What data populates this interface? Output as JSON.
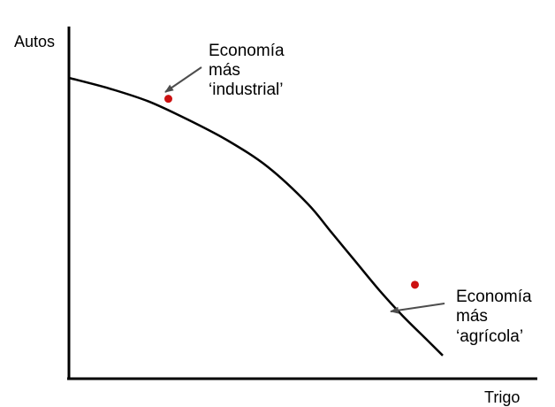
{
  "chart_data": {
    "type": "line",
    "title": "",
    "xlabel": "Trigo",
    "ylabel": "Autos",
    "xlim": [
      0,
      100
    ],
    "ylim": [
      0,
      100
    ],
    "grid": false,
    "ticks": false,
    "series": [
      {
        "x": [
          0,
          10,
          20,
          30,
          40,
          50,
          60,
          66,
          72,
          78,
          84,
          90,
          94
        ],
        "y": [
          100,
          96,
          91,
          84,
          76,
          66,
          52,
          41,
          30,
          19,
          9,
          0,
          -6
        ]
      }
    ],
    "points": [
      {
        "x": 25,
        "y": 92,
        "color": "#cc1111"
      },
      {
        "x": 87,
        "y": 21,
        "color": "#cc1111"
      }
    ],
    "annotations": [
      {
        "lines": [
          "Economía",
          "más",
          "‘industrial’"
        ]
      },
      {
        "lines": [
          "Economía",
          "más",
          "‘agrícola’"
        ]
      }
    ],
    "colors": {
      "curve": "#000000",
      "axis": "#000000",
      "arrow": "#4d4d4d",
      "point": "#cc1111"
    }
  }
}
